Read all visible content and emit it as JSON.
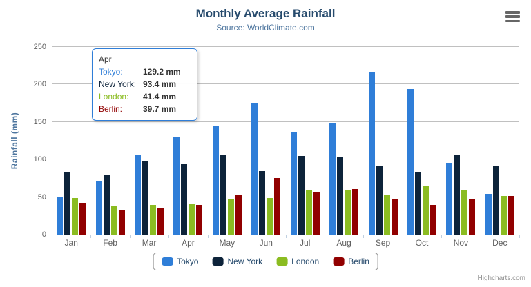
{
  "title": "Monthly Average Rainfall",
  "subtitle": "Source: WorldClimate.com",
  "credits": "Highcharts.com",
  "colors": {
    "title": "#274b6d",
    "subtitle": "#4d759e",
    "axis_title": "#4d759e",
    "axis_labels": "#606060",
    "grid_line": "#c0c0c0",
    "axis_line": "#c0d0e0",
    "legend_text": "#274b6d",
    "tooltip_border": "#2f7ed8"
  },
  "chart_data": {
    "type": "bar",
    "title": "Monthly Average Rainfall",
    "subtitle": "Source: WorldClimate.com",
    "categories": [
      "Jan",
      "Feb",
      "Mar",
      "Apr",
      "May",
      "Jun",
      "Jul",
      "Aug",
      "Sep",
      "Oct",
      "Nov",
      "Dec"
    ],
    "series": [
      {
        "name": "Tokyo",
        "color": "#2f7ed8",
        "values": [
          49.9,
          71.5,
          106.4,
          129.2,
          144.0,
          176.0,
          135.6,
          148.5,
          216.4,
          194.1,
          95.6,
          54.4
        ]
      },
      {
        "name": "New York",
        "color": "#0d233a",
        "values": [
          83.6,
          78.8,
          98.5,
          93.4,
          106.0,
          84.5,
          105.0,
          104.3,
          91.2,
          83.5,
          106.6,
          92.3
        ]
      },
      {
        "name": "London",
        "color": "#8bbc21",
        "values": [
          48.9,
          38.8,
          39.3,
          41.4,
          47.0,
          48.3,
          59.0,
          59.6,
          52.4,
          65.2,
          59.3,
          51.2
        ]
      },
      {
        "name": "Berlin",
        "color": "#910000",
        "values": [
          42.4,
          33.2,
          34.5,
          39.7,
          52.6,
          75.5,
          57.4,
          60.4,
          47.6,
          39.1,
          46.8,
          51.1
        ]
      }
    ],
    "xlabel": "",
    "ylabel": "Rainfall (mm)",
    "ylim": [
      0,
      250
    ],
    "ytick_interval": 50,
    "ytick_labels": [
      "0",
      "50",
      "100",
      "150",
      "200",
      "250"
    ],
    "grid": true,
    "legend_position": "bottom"
  },
  "tooltip": {
    "header": "Apr",
    "rows": [
      {
        "label": "Tokyo:",
        "value": "129.2 mm",
        "color": "#2f7ed8"
      },
      {
        "label": "New York:",
        "value": "93.4 mm",
        "color": "#0d233a"
      },
      {
        "label": "London:",
        "value": "41.4 mm",
        "color": "#8bbc21"
      },
      {
        "label": "Berlin:",
        "value": "39.7 mm",
        "color": "#910000"
      }
    ]
  },
  "legend": {
    "items": [
      {
        "label": "Tokyo",
        "color": "#2f7ed8"
      },
      {
        "label": "New York",
        "color": "#0d233a"
      },
      {
        "label": "London",
        "color": "#8bbc21"
      },
      {
        "label": "Berlin",
        "color": "#910000"
      }
    ]
  }
}
